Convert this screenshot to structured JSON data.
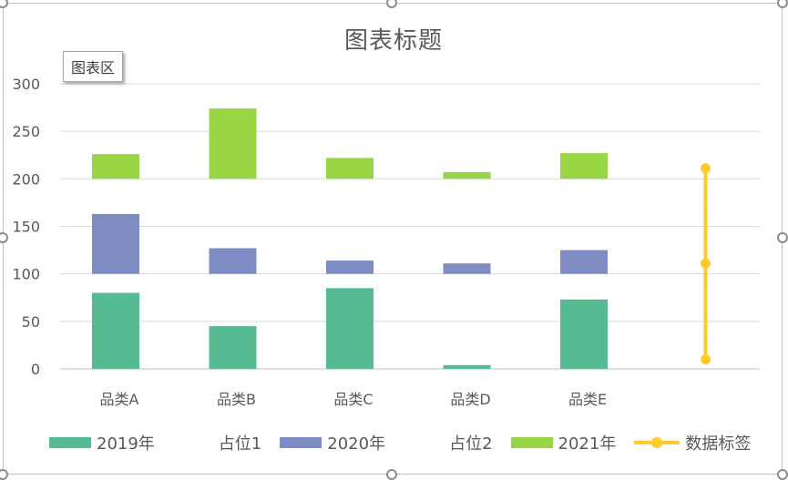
{
  "chart_data": {
    "type": "bar",
    "title": "图表标题",
    "stacked": true,
    "categories": [
      "品类A",
      "品类B",
      "品类C",
      "品类D",
      "品类E"
    ],
    "ylim": [
      0,
      300
    ],
    "yticks": [
      0,
      50,
      100,
      150,
      200,
      250,
      300
    ],
    "grid": true,
    "legend_position": "bottom",
    "series": [
      {
        "name": "2019年",
        "color": "#55bb93",
        "values": [
          80,
          45,
          85,
          4,
          73
        ]
      },
      {
        "name": "占位1",
        "color": null,
        "values": [
          20,
          55,
          15,
          96,
          27
        ]
      },
      {
        "name": "2020年",
        "color": "#7f8cc4",
        "values": [
          63,
          27,
          14,
          11,
          25
        ]
      },
      {
        "name": "占位2",
        "color": null,
        "values": [
          37,
          73,
          86,
          89,
          75
        ]
      },
      {
        "name": "2021年",
        "color": "#98d645",
        "values": [
          26,
          74,
          22,
          7,
          27
        ]
      }
    ],
    "line_series": {
      "name": "数据标签",
      "color": "#ffca2a",
      "points": [
        10,
        111,
        211
      ]
    }
  },
  "ui": {
    "chart_area_tooltip": "图表区"
  }
}
